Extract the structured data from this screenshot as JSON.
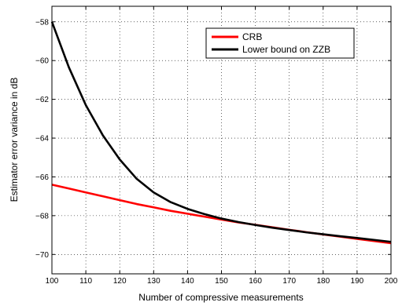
{
  "chart_data": {
    "type": "line",
    "title": "",
    "xlabel": "Number of compressive measurements",
    "ylabel": "Estimator error variance in dB",
    "xlim": [
      100,
      200
    ],
    "ylim": [
      -71,
      -57.2
    ],
    "xticks": [
      100,
      110,
      120,
      130,
      140,
      150,
      160,
      170,
      180,
      190,
      200
    ],
    "yticks": [
      -70,
      -68,
      -66,
      -64,
      -62,
      -60,
      -58
    ],
    "grid": true,
    "legend_position": "top-right",
    "x": [
      100,
      105,
      110,
      115,
      120,
      125,
      130,
      135,
      140,
      145,
      150,
      155,
      160,
      165,
      170,
      175,
      180,
      185,
      190,
      195,
      200
    ],
    "series": [
      {
        "name": "CRB",
        "color": "#ff0000",
        "values": [
          -66.4,
          -66.6,
          -66.8,
          -67.0,
          -67.2,
          -67.4,
          -67.57,
          -67.75,
          -67.9,
          -68.05,
          -68.2,
          -68.35,
          -68.47,
          -68.6,
          -68.73,
          -68.85,
          -68.97,
          -69.08,
          -69.2,
          -69.31,
          -69.42
        ]
      },
      {
        "name": "Lower bound on ZZB",
        "color": "#000000",
        "values": [
          -58.0,
          -60.35,
          -62.3,
          -63.85,
          -65.1,
          -66.1,
          -66.8,
          -67.3,
          -67.65,
          -67.92,
          -68.15,
          -68.33,
          -68.48,
          -68.62,
          -68.74,
          -68.86,
          -68.96,
          -69.06,
          -69.15,
          -69.25,
          -69.35
        ]
      }
    ]
  }
}
